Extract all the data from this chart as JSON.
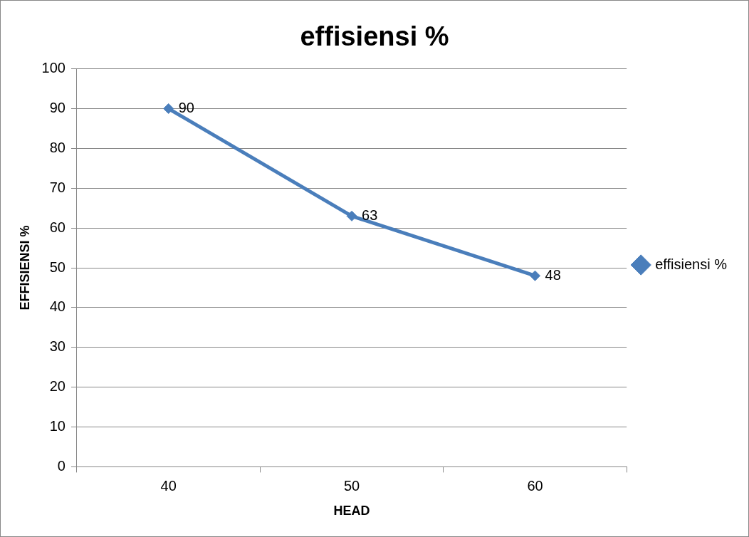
{
  "chart_data": {
    "type": "line",
    "title": "effisiensi %",
    "xlabel": "HEAD",
    "ylabel": "EFFISIENSI %",
    "categories": [
      "40",
      "50",
      "60"
    ],
    "series": [
      {
        "name": "effisiensi %",
        "color": "#4a7ebb",
        "values": [
          90,
          63,
          48
        ]
      }
    ],
    "ylim": [
      0,
      100
    ],
    "yticks": [
      0,
      10,
      20,
      30,
      40,
      50,
      60,
      70,
      80,
      90,
      100
    ],
    "grid": "y",
    "legend": "right",
    "marker": "diamond",
    "data_labels": true
  }
}
